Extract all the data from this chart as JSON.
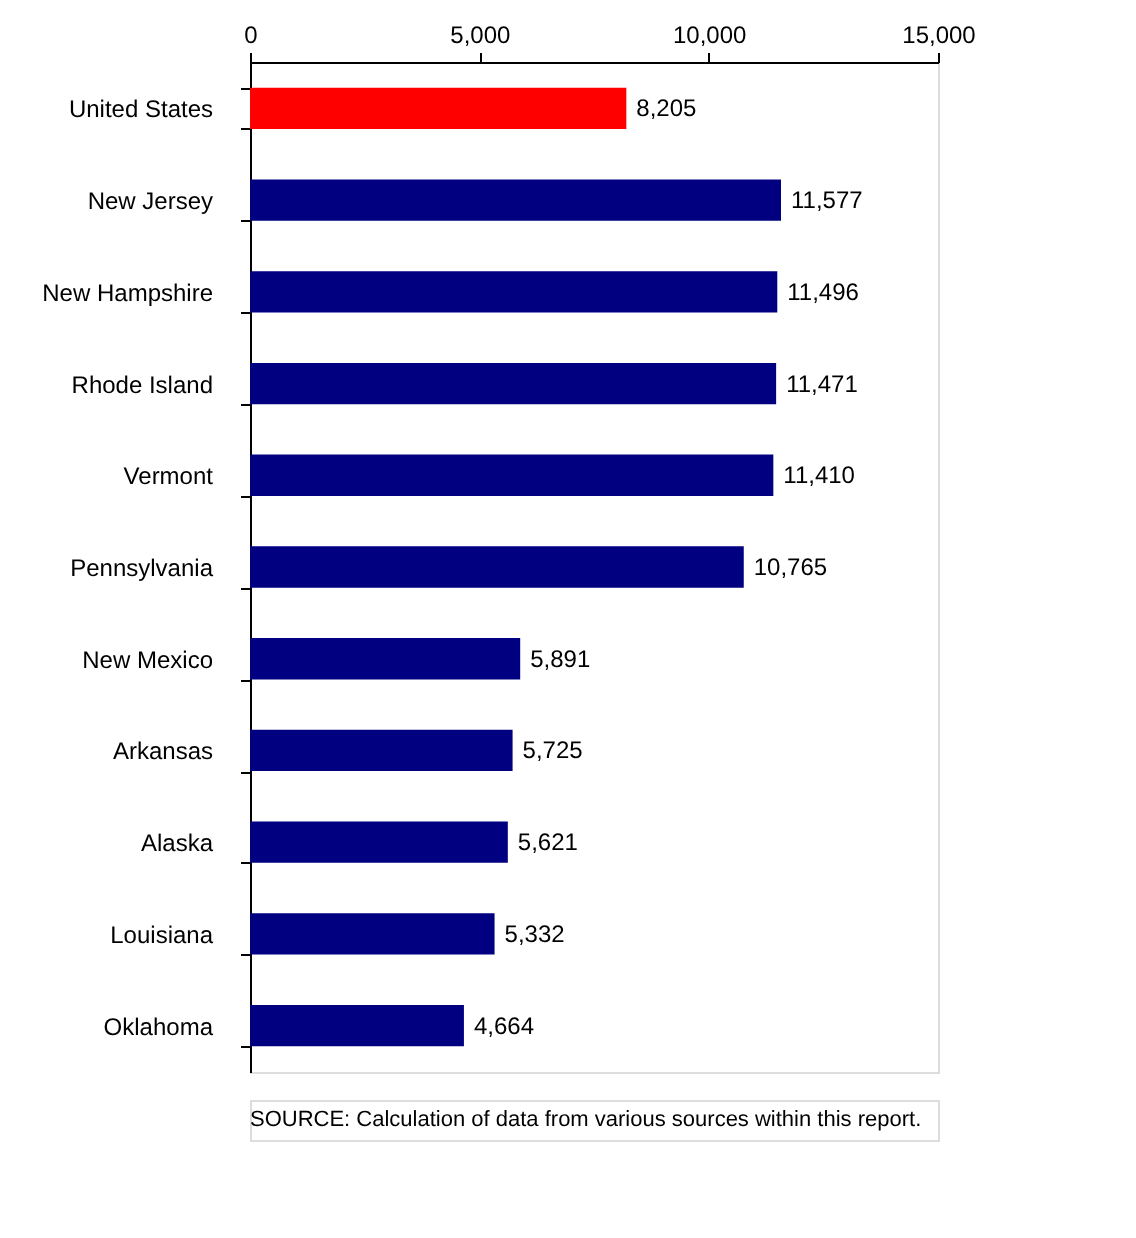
{
  "chart_data": {
    "type": "bar",
    "orientation": "horizontal",
    "categories": [
      "United States",
      "New Jersey",
      "New Hampshire",
      "Rhode Island",
      "Vermont",
      "Pennsylvania",
      "New Mexico",
      "Arkansas",
      "Alaska",
      "Louisiana",
      "Oklahoma"
    ],
    "values": [
      8205,
      11577,
      11496,
      11471,
      11410,
      10765,
      5891,
      5725,
      5621,
      5332,
      4664
    ],
    "value_labels": [
      "8,205",
      "11,577",
      "11,496",
      "11,471",
      "11,410",
      "10,765",
      "5,891",
      "5,725",
      "5,621",
      "5,332",
      "4,664"
    ],
    "colors": [
      "#ff0000",
      "#000080",
      "#000080",
      "#000080",
      "#000080",
      "#000080",
      "#000080",
      "#000080",
      "#000080",
      "#000080",
      "#000080"
    ],
    "xlim": [
      0,
      15000
    ],
    "xticks": [
      0,
      {
        "value": 5000,
        "label": "5,000"
      },
      {
        "value": 10000,
        "label": "10,000"
      },
      {
        "value": 15000,
        "label": "15,000"
      }
    ],
    "grid": false,
    "annotations": [
      "SOURCE: Calculation of data from various sources within this report."
    ]
  }
}
